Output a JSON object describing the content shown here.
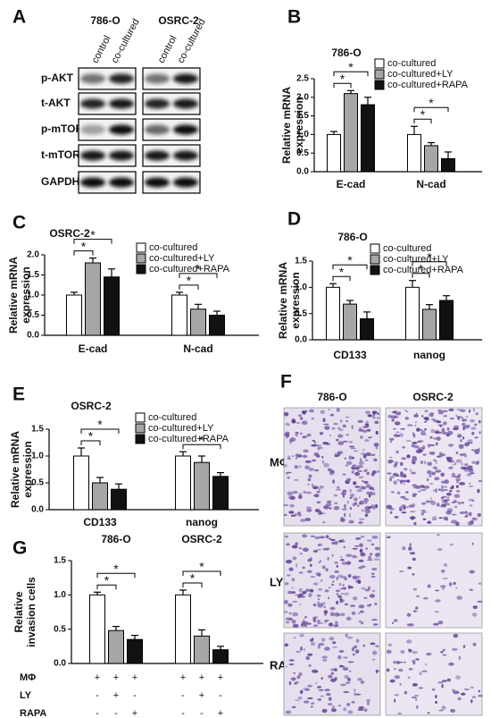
{
  "panel_labels": [
    "A",
    "B",
    "C",
    "D",
    "E",
    "F",
    "G"
  ],
  "blot": {
    "cell_lines": [
      "786-O",
      "OSRC-2"
    ],
    "lanes": [
      "control",
      "co-cultured",
      "control",
      "co-cultured"
    ],
    "proteins": [
      "p-AKT",
      "t-AKT",
      "p-mTOR",
      "t-mTOR",
      "GAPDH"
    ]
  },
  "invasion_images": {
    "cell_lines": [
      "786-O",
      "OSRC-2"
    ],
    "treatments": [
      "MΦ",
      "LY",
      "RAPA"
    ]
  },
  "chart_data": [
    {
      "type": "bar",
      "title": "786-O",
      "y_label": [
        "Relative mRNA",
        "expression"
      ],
      "categories": [
        "E-cad",
        "N-cad"
      ],
      "series": [
        {
          "name": "co-cultured",
          "color": "#ffffff",
          "values": [
            1.0,
            1.0
          ],
          "errors": [
            0.08,
            0.22
          ]
        },
        {
          "name": "co-cultured+LY",
          "color": "#a6a6a6",
          "values": [
            2.1,
            0.7
          ],
          "errors": [
            0.08,
            0.08
          ]
        },
        {
          "name": "co-cultured+RAPA",
          "color": "#111111",
          "values": [
            1.8,
            0.35
          ],
          "errors": [
            0.2,
            0.18
          ]
        }
      ],
      "ylim": [
        0,
        2.5
      ],
      "yticks": [
        {
          "value": 0,
          "label": "0.0"
        },
        0.5,
        {
          "value": 1,
          "label": "1.0"
        },
        1.5,
        {
          "value": 2,
          "label": "2.0"
        },
        2.5
      ],
      "legend": "upper right",
      "annotations": [
        "*",
        "*",
        "*",
        "*"
      ]
    },
    {
      "type": "bar",
      "title": "OSRC-2",
      "y_label": [
        "Relative mRNA",
        "expression"
      ],
      "categories": [
        "E-cad",
        "N-cad"
      ],
      "series": [
        {
          "name": "co-cultured",
          "color": "#ffffff",
          "values": [
            1.0,
            1.0
          ],
          "errors": [
            0.07,
            0.07
          ]
        },
        {
          "name": "co-cultured+LY",
          "color": "#a6a6a6",
          "values": [
            1.8,
            0.65
          ],
          "errors": [
            0.12,
            0.12
          ]
        },
        {
          "name": "co-cultured+RAPA",
          "color": "#111111",
          "values": [
            1.45,
            0.5
          ],
          "errors": [
            0.2,
            0.1
          ]
        }
      ],
      "ylim": [
        0,
        2
      ],
      "yticks": [
        {
          "value": 0,
          "label": "0.0"
        },
        0.5,
        {
          "value": 1,
          "label": "1.0"
        },
        1.5,
        {
          "value": 2,
          "label": "2.0"
        }
      ],
      "legend": "upper right",
      "annotations": [
        "*",
        "*",
        "*",
        "*"
      ]
    },
    {
      "type": "bar",
      "title": "786-O",
      "y_label": [
        "Relative mRNA",
        "expression"
      ],
      "categories": [
        "CD133",
        "nanog"
      ],
      "series": [
        {
          "name": "co-cultured",
          "color": "#ffffff",
          "values": [
            1.0,
            1.0
          ],
          "errors": [
            0.07,
            0.13
          ]
        },
        {
          "name": "co-cultured+LY",
          "color": "#a6a6a6",
          "values": [
            0.68,
            0.58
          ],
          "errors": [
            0.07,
            0.09
          ]
        },
        {
          "name": "co-cultured+RAPA",
          "color": "#111111",
          "values": [
            0.4,
            0.75
          ],
          "errors": [
            0.13,
            0.09
          ]
        }
      ],
      "ylim": [
        0,
        1.5
      ],
      "yticks": [
        {
          "value": 0,
          "label": "0.0"
        },
        0.5,
        {
          "value": 1,
          "label": "1.0"
        },
        1.5
      ],
      "legend": "upper right",
      "annotations": [
        "*",
        "*",
        "*",
        "*"
      ]
    },
    {
      "type": "bar",
      "title": "OSRC-2",
      "y_label": [
        "Relative mRNA",
        "expression"
      ],
      "categories": [
        "CD133",
        "nanog"
      ],
      "series": [
        {
          "name": "co-cultured",
          "color": "#ffffff",
          "values": [
            1.0,
            1.0
          ],
          "errors": [
            0.15,
            0.08
          ]
        },
        {
          "name": "co-cultured+LY",
          "color": "#a6a6a6",
          "values": [
            0.5,
            0.88
          ],
          "errors": [
            0.1,
            0.12
          ]
        },
        {
          "name": "co-cultured+RAPA",
          "color": "#111111",
          "values": [
            0.38,
            0.62
          ],
          "errors": [
            0.1,
            0.07
          ]
        }
      ],
      "ylim": [
        0,
        1.5
      ],
      "yticks": [
        {
          "value": 0,
          "label": "0.0"
        },
        0.5,
        {
          "value": 1,
          "label": "1.0"
        },
        1.5
      ],
      "legend": "upper right",
      "annotations": [
        "*",
        "*",
        "*"
      ]
    },
    {
      "type": "bar",
      "y_label": [
        "Relative",
        "invasion cells"
      ],
      "categories": [
        "786-O",
        "OSRC-2"
      ],
      "series": [
        {
          "color": "#ffffff",
          "values": [
            1.0,
            1.0
          ],
          "errors": [
            0.04,
            0.07
          ]
        },
        {
          "color": "#a6a6a6",
          "values": [
            0.48,
            0.4
          ],
          "errors": [
            0.06,
            0.09
          ]
        },
        {
          "color": "#111111",
          "values": [
            0.35,
            0.2
          ],
          "errors": [
            0.06,
            0.05
          ]
        }
      ],
      "ylim": [
        0,
        1.5
      ],
      "yticks": [
        {
          "value": 0,
          "label": "0.0"
        },
        0.5,
        {
          "value": 1,
          "label": "1.0"
        },
        1.5
      ],
      "annotations": [
        "*",
        "*",
        "*",
        "*"
      ],
      "treatment_rows": [
        {
          "label": "MΦ",
          "marks": [
            "+",
            "+",
            "+",
            "+",
            "+",
            "+"
          ]
        },
        {
          "label": "LY",
          "marks": [
            "-",
            "+",
            "-",
            "-",
            "+",
            "-"
          ]
        },
        {
          "label": "RAPA",
          "marks": [
            "-",
            "-",
            "+",
            "-",
            "-",
            "+"
          ]
        }
      ]
    }
  ]
}
